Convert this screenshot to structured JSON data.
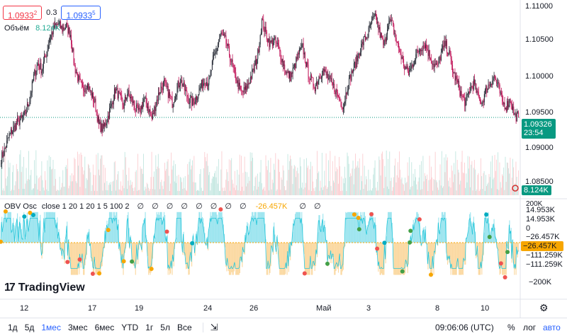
{
  "quotes": {
    "sell": "1.0933",
    "sell_sup": "2",
    "spread": "0.3",
    "buy": "1.0933",
    "buy_sup": "5"
  },
  "volume_legend": {
    "name": "Объём",
    "value": "8.124K"
  },
  "obv_legend": {
    "name": "OBV Osc",
    "params": "close 1 20 1 20 1 5 100 2",
    "empty_values": "∅ ∅ ∅ ∅ ∅ ∅ ∅ ∅",
    "value": "-26.457K",
    "empty_values2": "∅ ∅"
  },
  "price_axis": [
    "1.11000",
    "1.10500",
    "1.10000",
    "1.09500",
    "1.09000",
    "1.08500"
  ],
  "price_tag": {
    "price": "1.09326",
    "countdown": "23:54"
  },
  "volume_tag": "8.124K",
  "obv_axis": {
    "top": "200K",
    "l1": "14.953K",
    "l2": "14.953K",
    "zero": "0",
    "l3": "−26.457K",
    "l4": "−111.259K",
    "l5": "−111.259K",
    "bottom": "−200K"
  },
  "obv_tag": "−26.457K",
  "time_axis": [
    "12",
    "17",
    "19",
    "24",
    "26",
    "Май",
    "3",
    "8",
    "10"
  ],
  "logo": {
    "text": "TradingView"
  },
  "toolbar": {
    "timeframes": [
      "1д",
      "5д",
      "1мес",
      "3мес",
      "6мес",
      "YTD",
      "1г",
      "5л",
      "Все"
    ],
    "active": "1мес",
    "clock": "09:06:06 (UTC)",
    "percent": "%",
    "log": "лог",
    "auto": "авто"
  },
  "colors": {
    "up": "#089981",
    "down": "#f23645",
    "candle_dark": "#131722",
    "obv_pos": "#4dd0e1",
    "obv_neg": "#f7b955",
    "accent": "#2962ff"
  },
  "chart_data": [
    {
      "type": "candlestick",
      "title": "",
      "ylim": [
        1.082,
        1.111
      ],
      "y_ticks": [
        1.11,
        1.105,
        1.1,
        1.095,
        1.09,
        1.085
      ],
      "last_price": 1.09326,
      "x_labels": [
        "12",
        "17",
        "19",
        "24",
        "26",
        "Май",
        "3",
        "8",
        "10"
      ],
      "close_path": [
        1.087,
        1.0885,
        1.0905,
        1.0915,
        1.0925,
        1.093,
        1.094,
        1.096,
        1.0995,
        1.1015,
        1.1005,
        1.103,
        1.1055,
        1.107,
        1.1075,
        1.1068,
        1.1072,
        1.106,
        1.101,
        1.099,
        1.0975,
        1.0985,
        1.097,
        1.0955,
        1.092,
        1.0915,
        1.093,
        1.095,
        1.0975,
        1.0965,
        1.095,
        1.097,
        1.096,
        1.0945,
        1.094,
        1.096,
        1.095,
        1.093,
        1.0955,
        1.0975,
        1.0985,
        1.097,
        1.0955,
        1.0975,
        1.099,
        1.0975,
        1.096,
        1.0955,
        1.0965,
        1.098,
        1.099,
        1.0985,
        1.102,
        1.104,
        1.106,
        1.105,
        1.103,
        1.1005,
        1.0985,
        1.097,
        1.0975,
        1.099,
        1.1005,
        1.103,
        1.108,
        1.106,
        1.1045,
        1.105,
        1.104,
        1.102,
        1.1,
        1.0995,
        1.101,
        1.103,
        1.104,
        1.101,
        1.099,
        1.098,
        1.0995,
        1.1005,
        1.0995,
        1.0985,
        1.0975,
        1.096,
        1.095,
        1.098,
        1.1,
        1.1015,
        1.1035,
        1.105,
        1.106,
        1.108,
        1.1085,
        1.106,
        1.104,
        1.108,
        1.1075,
        1.105,
        1.103,
        1.101,
        1.1,
        1.1015,
        1.103,
        1.104,
        1.1045,
        1.103,
        1.1015,
        1.101,
        1.103,
        1.1045,
        1.103,
        1.1,
        1.0985,
        1.0965,
        1.0955,
        1.0975,
        1.0985,
        1.0965,
        1.0955,
        1.0975,
        1.0985,
        1.0995,
        1.098,
        1.0955,
        1.095,
        1.096,
        1.0935,
        1.0933
      ],
      "volume_last": 8124
    },
    {
      "type": "area",
      "title": "OBV Osc",
      "ylim": [
        -200000,
        200000
      ],
      "last_value": -26457,
      "levels": [
        14953,
        -26457,
        -111259
      ]
    }
  ]
}
